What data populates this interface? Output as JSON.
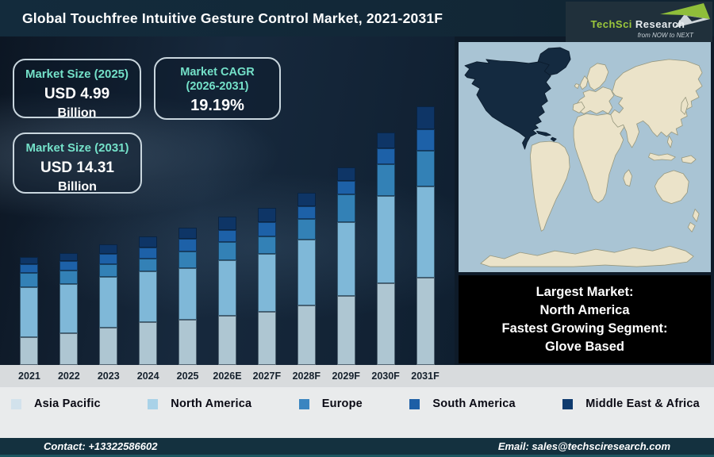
{
  "header": {
    "title": "Global Touchfree Intuitive Gesture Control Market, 2021-2031F"
  },
  "logo": {
    "brand_primary": "TechSci",
    "brand_secondary": "Research",
    "tagline": "from NOW to NEXT"
  },
  "info_boxes": {
    "market_size_2025": {
      "title": "Market Size (2025)",
      "value": "USD 4.99",
      "unit": "Billion"
    },
    "market_cagr": {
      "title_line1": "Market CAGR",
      "title_line2": "(2026-2031)",
      "value": "19.19%"
    },
    "market_size_2031": {
      "title": "Market Size (2031)",
      "value": "USD 14.31",
      "unit": "Billion"
    }
  },
  "chart_data": {
    "type": "bar",
    "stacked": true,
    "title": "Global Touchfree Intuitive Gesture Control Market, 2021-2031F",
    "categories": [
      "2021",
      "2022",
      "2023",
      "2024",
      "2025",
      "2026E",
      "2027F",
      "2028F",
      "2029F",
      "2030F",
      "2031F"
    ],
    "series": [
      {
        "name": "Asia Pacific",
        "color": "#aec6d2",
        "values": [
          35,
          40,
          47,
          54,
          57,
          62,
          67,
          75,
          87,
          103,
          110
        ]
      },
      {
        "name": "North America",
        "color": "#7fb8d8",
        "values": [
          63,
          62,
          64,
          64,
          65,
          70,
          73,
          83,
          93,
          110,
          115
        ]
      },
      {
        "name": "Europe",
        "color": "#3381b6",
        "values": [
          18,
          17,
          16,
          16,
          21,
          23,
          22,
          26,
          35,
          40,
          45
        ]
      },
      {
        "name": "South America",
        "color": "#1d61a8",
        "values": [
          11,
          12,
          13,
          14,
          16,
          15,
          18,
          16,
          17,
          20,
          27
        ]
      },
      {
        "name": "Middle East & Africa",
        "color": "#0e3566",
        "values": [
          9,
          10,
          12,
          14,
          14,
          17,
          18,
          17,
          17,
          20,
          29
        ]
      }
    ],
    "value_units": "relative stacked bar heights in px (no y-axis shown in graphic)",
    "known_points": {
      "total_2025_usd_billion": 4.99,
      "total_2031_usd_billion": 14.31,
      "cagr_2026_2031_pct": 19.19
    },
    "axis": {
      "y_axis_visible": false,
      "gridlines": false,
      "legend_position": "bottom"
    }
  },
  "map": {
    "ocean_color": "#a9c4d4",
    "land_color": "#ebe3c9",
    "land_stroke": "#97987e",
    "highlight_color": "#142a40",
    "highlight_stroke": "#0a1a2b",
    "highlighted_region": "North America"
  },
  "callout": {
    "line1": "Largest Market:",
    "line2": "North America",
    "line3": "Fastest Growing Segment:",
    "line4": "Glove Based"
  },
  "legend": {
    "items": [
      {
        "label": "Asia Pacific",
        "color": "#d2e2ec"
      },
      {
        "label": "North America",
        "color": "#a9d2e8"
      },
      {
        "label": "Europe",
        "color": "#3a85c0"
      },
      {
        "label": "South America",
        "color": "#1d5fa6"
      },
      {
        "label": "Middle East & Africa",
        "color": "#0e3a6e"
      }
    ]
  },
  "footer": {
    "contact": "Contact: +13322586602",
    "email": "Email: sales@techsciresearch.com"
  }
}
